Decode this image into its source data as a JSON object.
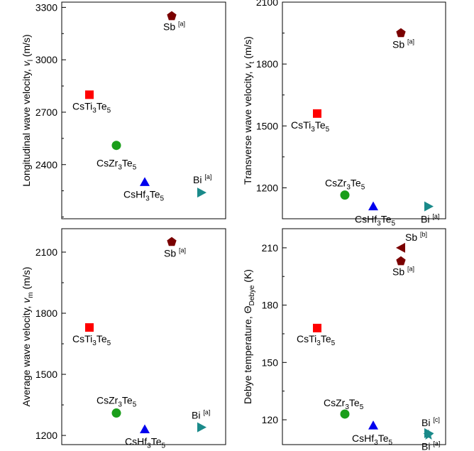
{
  "chart_data": [
    {
      "type": "scatter",
      "ylabel": "Longitudinal wave velocity, v_l (m/s)",
      "ylim": [
        2090,
        3330
      ],
      "yticks": [
        2400,
        2700,
        3000,
        3300
      ],
      "points": [
        {
          "label": "CsTi3Te5",
          "y": 2800,
          "marker": "square",
          "color": "#ff0000"
        },
        {
          "label": "CsZr3Te5",
          "y": 2510,
          "marker": "circle",
          "color": "#1a9e1a"
        },
        {
          "label": "CsHf3Te5",
          "y": 2300,
          "marker": "triangle-up",
          "color": "#0000ee"
        },
        {
          "label": "Sb [a]",
          "y": 3250,
          "marker": "pentagon",
          "color": "#7a0000"
        },
        {
          "label": "Bi [a]",
          "y": 2240,
          "marker": "triangle-right",
          "color": "#1a8a8a"
        }
      ]
    },
    {
      "type": "scatter",
      "ylabel": "Transverse wave velocity, v_t (m/s)",
      "ylim": [
        1050,
        2100
      ],
      "yticks": [
        1200,
        1500,
        1800,
        2100
      ],
      "points": [
        {
          "label": "CsTi3Te5",
          "y": 1560,
          "marker": "square",
          "color": "#ff0000"
        },
        {
          "label": "CsZr3Te5",
          "y": 1165,
          "marker": "circle",
          "color": "#1a9e1a"
        },
        {
          "label": "CsHf3Te5",
          "y": 1110,
          "marker": "triangle-up",
          "color": "#0000ee"
        },
        {
          "label": "Sb [a]",
          "y": 1950,
          "marker": "pentagon",
          "color": "#7a0000"
        },
        {
          "label": "Bi [a]",
          "y": 1110,
          "marker": "triangle-right",
          "color": "#1a8a8a"
        }
      ]
    },
    {
      "type": "scatter",
      "ylabel": "Average wave velocity, v_m (m/s)",
      "ylim": [
        1155,
        2215
      ],
      "yticks": [
        1200,
        1500,
        1800,
        2100
      ],
      "points": [
        {
          "label": "CsTi3Te5",
          "y": 1730,
          "marker": "square",
          "color": "#ff0000"
        },
        {
          "label": "CsZr3Te5",
          "y": 1310,
          "marker": "circle",
          "color": "#1a9e1a"
        },
        {
          "label": "CsHf3Te5",
          "y": 1230,
          "marker": "triangle-up",
          "color": "#0000ee"
        },
        {
          "label": "Sb [a]",
          "y": 2150,
          "marker": "pentagon",
          "color": "#7a0000"
        },
        {
          "label": "Bi [a]",
          "y": 1240,
          "marker": "triangle-right",
          "color": "#1a8a8a"
        }
      ]
    },
    {
      "type": "scatter",
      "ylabel": "Debye temperature, Θ_Debye (K)",
      "ylim": [
        107,
        220
      ],
      "yticks": [
        120,
        150,
        180,
        210
      ],
      "points": [
        {
          "label": "CsTi3Te5",
          "y": 168,
          "marker": "square",
          "color": "#ff0000"
        },
        {
          "label": "CsZr3Te5",
          "y": 123,
          "marker": "circle",
          "color": "#1a9e1a"
        },
        {
          "label": "CsHf3Te5",
          "y": 117,
          "marker": "triangle-up",
          "color": "#0000ee"
        },
        {
          "label": "Sb [a]",
          "y": 203,
          "marker": "pentagon",
          "color": "#7a0000"
        },
        {
          "label": "Sb [b]",
          "y": 210,
          "marker": "triangle-left",
          "color": "#7a0000"
        },
        {
          "label": "Bi [a]",
          "y": 112,
          "marker": "star",
          "color": "#1a8a8a"
        },
        {
          "label": "Bi [c]",
          "y": 113,
          "marker": "triangle-right",
          "color": "#1a8a8a"
        }
      ]
    }
  ]
}
